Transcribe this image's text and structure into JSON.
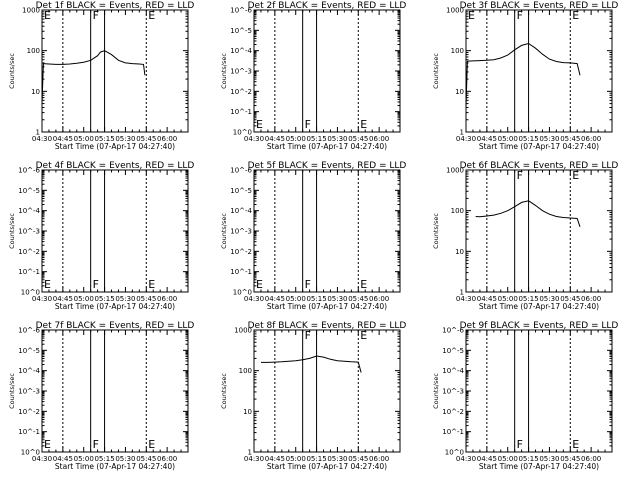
{
  "chart_data": [
    {
      "type": "line",
      "title": "Det 1f BLACK = Events, RED = LLD",
      "xlabel": "Start Time (07-Apr-17 04:27:40)",
      "ylabel": "Counts/sec",
      "scale": "log",
      "ylim": [
        1,
        1000
      ],
      "yticks": [
        "1",
        "10",
        "100",
        "1000"
      ],
      "xticks": [
        "04:30",
        "04:45",
        "05:00",
        "05:15",
        "05:30",
        "05:45",
        "06:00"
      ],
      "markers": [
        "E",
        "F",
        "E"
      ],
      "series": [
        {
          "name": "Events",
          "x": [
            "04:30",
            "04:31",
            "04:35",
            "04:40",
            "04:45",
            "04:50",
            "04:55",
            "05:00",
            "05:05",
            "05:10",
            "05:12",
            "05:15",
            "05:20",
            "05:25",
            "05:30",
            "05:35",
            "05:40",
            "05:43",
            "05:44"
          ],
          "y": [
            5,
            48,
            47,
            46,
            46,
            47,
            49,
            52,
            58,
            75,
            92,
            100,
            80,
            58,
            50,
            48,
            47,
            46,
            25
          ]
        }
      ]
    },
    {
      "type": "line",
      "title": "Det 2f BLACK = Events, RED = LLD",
      "xlabel": "Start Time (07-Apr-17 04:27:40)",
      "ylabel": "Counts/sec",
      "scale": "log",
      "ylim": [
        1,
        1000000
      ],
      "yticks": [
        "10^0",
        "10^-1",
        "10^-2",
        "10^-3",
        "10^-4",
        "10^-5",
        "10^-6"
      ],
      "xticks": [
        "04:30",
        "04:45",
        "05:00",
        "05:15",
        "05:30",
        "05:45",
        "06:00"
      ],
      "markers": [
        "E",
        "F",
        "E"
      ],
      "series": []
    },
    {
      "type": "line",
      "title": "Det 3f BLACK = Events, RED = LLD",
      "xlabel": "Start Time (07-Apr-17 04:27:40)",
      "ylabel": "Counts/sec",
      "scale": "log",
      "ylim": [
        1,
        1000
      ],
      "yticks": [
        "1",
        "10",
        "100",
        "1000"
      ],
      "xticks": [
        "04:30",
        "04:45",
        "05:00",
        "05:15",
        "05:30",
        "05:45",
        "06:00"
      ],
      "markers": [
        "E",
        "F",
        "E"
      ],
      "series": [
        {
          "name": "Events",
          "x": [
            "04:30",
            "04:31",
            "04:35",
            "04:40",
            "04:45",
            "04:50",
            "04:55",
            "05:00",
            "05:05",
            "05:10",
            "05:15",
            "05:20",
            "05:25",
            "05:30",
            "05:35",
            "05:40",
            "05:45",
            "05:50",
            "05:52"
          ],
          "y": [
            4,
            55,
            56,
            57,
            58,
            60,
            66,
            78,
            105,
            135,
            150,
            115,
            82,
            62,
            54,
            51,
            50,
            48,
            25
          ]
        }
      ]
    },
    {
      "type": "line",
      "title": "Det 4f BLACK = Events, RED = LLD",
      "xlabel": "Start Time (07-Apr-17 04:27:40)",
      "ylabel": "Counts/sec",
      "scale": "log",
      "ylim": [
        1,
        1000000
      ],
      "yticks": [
        "10^0",
        "10^-1",
        "10^-2",
        "10^-3",
        "10^-4",
        "10^-5",
        "10^-6"
      ],
      "xticks": [
        "04:30",
        "04:45",
        "05:00",
        "05:15",
        "05:30",
        "05:45",
        "06:00"
      ],
      "markers": [
        "E",
        "F",
        "E"
      ],
      "series": []
    },
    {
      "type": "line",
      "title": "Det 5f BLACK = Events, RED = LLD",
      "xlabel": "Start Time (07-Apr-17 04:27:40)",
      "ylabel": "Counts/sec",
      "scale": "log",
      "ylim": [
        1,
        1000000
      ],
      "yticks": [
        "10^0",
        "10^-1",
        "10^-2",
        "10^-3",
        "10^-4",
        "10^-5",
        "10^-6"
      ],
      "xticks": [
        "04:30",
        "04:45",
        "05:00",
        "05:15",
        "05:30",
        "05:45",
        "06:00"
      ],
      "markers": [
        "E",
        "F",
        "E"
      ],
      "series": []
    },
    {
      "type": "line",
      "title": "Det 6f BLACK = Events, RED = LLD",
      "xlabel": "Start Time (07-Apr-17 04:27:40)",
      "ylabel": "Counts/sec",
      "scale": "log",
      "ylim": [
        1,
        1000
      ],
      "yticks": [
        "1",
        "10",
        "100",
        "1000"
      ],
      "xticks": [
        "04:30",
        "04:45",
        "05:00",
        "05:15",
        "05:30",
        "05:45",
        "06:00"
      ],
      "markers": [
        "F",
        "E"
      ],
      "series": [
        {
          "name": "Events",
          "x": [
            "04:37",
            "04:40",
            "04:45",
            "04:50",
            "04:55",
            "05:00",
            "05:05",
            "05:10",
            "05:15",
            "05:20",
            "05:25",
            "05:30",
            "05:35",
            "05:40",
            "05:45",
            "05:50",
            "05:52"
          ],
          "y": [
            72,
            71,
            74,
            78,
            86,
            100,
            125,
            160,
            175,
            135,
            100,
            82,
            72,
            68,
            66,
            64,
            40
          ]
        }
      ]
    },
    {
      "type": "line",
      "title": "Det 7f BLACK = Events, RED = LLD",
      "xlabel": "Start Time (07-Apr-17 04:27:40)",
      "ylabel": "Counts/sec",
      "scale": "log",
      "ylim": [
        1,
        1000000
      ],
      "yticks": [
        "10^0",
        "10^-1",
        "10^-2",
        "10^-3",
        "10^-4",
        "10^-5",
        "10^-6"
      ],
      "xticks": [
        "04:30",
        "04:45",
        "05:00",
        "05:15",
        "05:30",
        "05:45",
        "06:00"
      ],
      "markers": [
        "E",
        "F",
        "E"
      ],
      "series": []
    },
    {
      "type": "line",
      "title": "Det 8f BLACK = Events, RED = LLD",
      "xlabel": "Start Time (07-Apr-17 04:27:40)",
      "ylabel": "Counts/sec",
      "scale": "log",
      "ylim": [
        1,
        1000
      ],
      "yticks": [
        "1",
        "10",
        "100",
        "1000"
      ],
      "xticks": [
        "04:30",
        "04:45",
        "05:00",
        "05:15",
        "05:30",
        "05:45",
        "06:00"
      ],
      "markers": [
        "F",
        "E"
      ],
      "series": [
        {
          "name": "Events",
          "x": [
            "04:35",
            "04:40",
            "04:45",
            "04:50",
            "04:55",
            "05:00",
            "05:05",
            "05:10",
            "05:15",
            "05:20",
            "05:25",
            "05:30",
            "05:35",
            "05:40",
            "05:45",
            "05:47"
          ],
          "y": [
            160,
            160,
            162,
            165,
            170,
            175,
            185,
            200,
            230,
            215,
            190,
            175,
            170,
            165,
            162,
            90
          ]
        }
      ]
    },
    {
      "type": "line",
      "title": "Det 9f BLACK = Events, RED = LLD",
      "xlabel": "Start Time (07-Apr-17 04:27:40)",
      "ylabel": "Counts/sec",
      "scale": "log",
      "ylim": [
        1,
        1000000
      ],
      "yticks": [
        "10^0",
        "10^-1",
        "10^-2",
        "10^-3",
        "10^-4",
        "10^-5",
        "10^-6"
      ],
      "xticks": [
        "04:30",
        "04:45",
        "05:00",
        "05:15",
        "05:30",
        "05:45",
        "06:00"
      ],
      "markers": [
        "F",
        "E"
      ],
      "series": []
    }
  ]
}
